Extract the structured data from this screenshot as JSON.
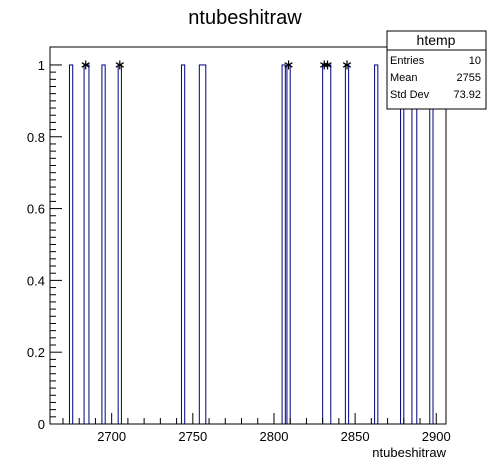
{
  "chart_data": {
    "type": "histogram",
    "title": "ntubeshitraw",
    "xlabel": "ntubeshitraw",
    "ylabel": "",
    "xlim": [
      2662,
      2906
    ],
    "ylim": [
      0,
      1.05
    ],
    "bar_color": "#000080",
    "marker_color": "#000000",
    "x_ticks": [
      {
        "value": 2700,
        "label": "2700"
      },
      {
        "value": 2750,
        "label": "2750"
      },
      {
        "value": 2800,
        "label": "2800"
      },
      {
        "value": 2850,
        "label": "2850"
      },
      {
        "value": 2900,
        "label": "2900"
      }
    ],
    "y_ticks": [
      {
        "value": 0,
        "label": "0"
      },
      {
        "value": 0.2,
        "label": "0.2"
      },
      {
        "value": 0.4,
        "label": "0.4"
      },
      {
        "value": 0.6,
        "label": "0.6"
      },
      {
        "value": 0.8,
        "label": "0.8"
      },
      {
        "value": 1.0,
        "label": "1"
      }
    ],
    "bins": [
      {
        "start": 2674,
        "end": 2676,
        "value": 1
      },
      {
        "start": 2683,
        "end": 2686,
        "value": 1
      },
      {
        "start": 2694,
        "end": 2696,
        "value": 1
      },
      {
        "start": 2704,
        "end": 2706,
        "value": 1
      },
      {
        "start": 2743,
        "end": 2745,
        "value": 1
      },
      {
        "start": 2754,
        "end": 2758,
        "value": 1
      },
      {
        "start": 2805,
        "end": 2807,
        "value": 1
      },
      {
        "start": 2808,
        "end": 2810,
        "value": 1
      },
      {
        "start": 2830,
        "end": 2835,
        "value": 1
      },
      {
        "start": 2844,
        "end": 2846,
        "value": 1
      },
      {
        "start": 2862,
        "end": 2864,
        "value": 1
      },
      {
        "start": 2878,
        "end": 2880,
        "value": 1
      },
      {
        "start": 2885,
        "end": 2888,
        "value": 1
      },
      {
        "start": 2896,
        "end": 2898,
        "value": 1
      }
    ],
    "markers": [
      {
        "x": 2684,
        "y": 1
      },
      {
        "x": 2705,
        "y": 1
      },
      {
        "x": 2809,
        "y": 1
      },
      {
        "x": 2831,
        "y": 1
      },
      {
        "x": 2833,
        "y": 1
      },
      {
        "x": 2845,
        "y": 1
      },
      {
        "x": 2879,
        "y": 1
      },
      {
        "x": 2886,
        "y": 1
      }
    ],
    "stats_box": {
      "title": "htemp",
      "rows": [
        {
          "label": "Entries",
          "value": "10"
        },
        {
          "label": "Mean",
          "value": "2755"
        },
        {
          "label": "Std Dev",
          "value": "73.92"
        }
      ]
    }
  }
}
